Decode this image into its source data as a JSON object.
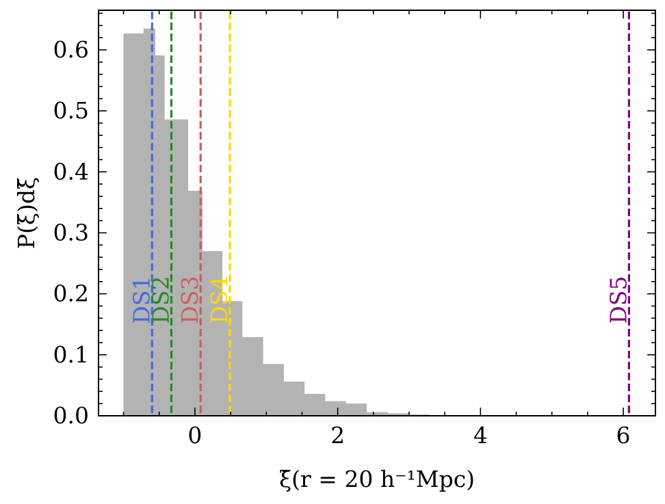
{
  "chart_data": {
    "type": "bar",
    "xlabel": "ξ̄(r = 20 h⁻¹Mpc)",
    "ylabel": "P(ξ̄)dξ̄",
    "xlim": [
      -1.35,
      6.45
    ],
    "ylim": [
      0,
      0.665
    ],
    "x_ticks": [
      0,
      2,
      4,
      6
    ],
    "x_tick_labels": [
      "0",
      "2",
      "4",
      "6"
    ],
    "y_ticks": [
      0.0,
      0.1,
      0.2,
      0.3,
      0.4,
      0.5,
      0.6
    ],
    "y_tick_labels": [
      "0.0",
      "0.1",
      "0.2",
      "0.3",
      "0.4",
      "0.5",
      "0.6"
    ],
    "grid": false,
    "histogram": {
      "color": "#b3b3b3",
      "bin_edges": [
        -1.0,
        -0.72,
        -0.56,
        -0.43,
        -0.1,
        0.1,
        0.38,
        0.66,
        0.95,
        1.24,
        1.53,
        1.82,
        2.11,
        2.4,
        2.7,
        2.99,
        3.28,
        3.57,
        3.86,
        4.15,
        4.44,
        4.73,
        5.02,
        5.31,
        5.6,
        5.89,
        6.18
      ],
      "values": [
        0.627,
        0.635,
        0.591,
        0.486,
        0.369,
        0.27,
        0.188,
        0.129,
        0.085,
        0.056,
        0.036,
        0.024,
        0.02,
        0.006,
        0.004,
        0.002,
        0.001,
        0.001,
        0.0,
        0.0,
        0.0,
        0.0,
        0.0,
        0.0,
        0.0,
        0.0
      ]
    },
    "reference_lines": [
      {
        "label": "DS1",
        "x": -0.6,
        "color": "#4169e1"
      },
      {
        "label": "DS2",
        "x": -0.33,
        "color": "#228b22"
      },
      {
        "label": "DS3",
        "x": 0.08,
        "color": "#cd5c5c"
      },
      {
        "label": "DS4",
        "x": 0.49,
        "color": "#ffd700"
      },
      {
        "label": "DS5",
        "x": 6.08,
        "color": "#800080"
      }
    ],
    "reference_label_y": 0.19
  }
}
